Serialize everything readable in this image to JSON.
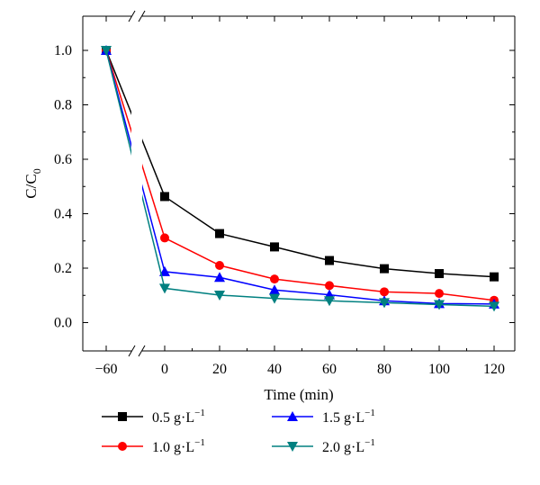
{
  "chart_data": {
    "type": "line",
    "xlabel": "Time (min)",
    "ylabel": {
      "main": "C/C",
      "sub": "0"
    },
    "x": [
      -60,
      0,
      20,
      40,
      60,
      80,
      100,
      120
    ],
    "x_tick_labels": [
      "−60",
      "0",
      "20",
      "40",
      "60",
      "80",
      "100",
      "120"
    ],
    "y_ticks": [
      0.0,
      0.2,
      0.4,
      0.6,
      0.8,
      1.0
    ],
    "y_tick_labels": [
      "0.0",
      "0.2",
      "0.4",
      "0.6",
      "0.8",
      "1.0"
    ],
    "ylim": [
      -0.08,
      1.1
    ],
    "axis_break": "between -60 and 0",
    "grid": false,
    "legend_position": "bottom",
    "series": [
      {
        "name": "0.5 g·L",
        "unit_exp": "−1",
        "color": "#000000",
        "marker": "square",
        "values": [
          1.0,
          0.463,
          0.327,
          0.278,
          0.228,
          0.198,
          0.18,
          0.168
        ]
      },
      {
        "name": "1.0 g·L",
        "unit_exp": "−1",
        "color": "#ff0000",
        "marker": "circle",
        "values": [
          1.0,
          0.311,
          0.21,
          0.16,
          0.136,
          0.113,
          0.107,
          0.082
        ]
      },
      {
        "name": "1.5 g·L",
        "unit_exp": "−1",
        "color": "#0000ff",
        "marker": "triangle-up",
        "values": [
          1.0,
          0.187,
          0.166,
          0.12,
          0.102,
          0.08,
          0.07,
          0.068
        ]
      },
      {
        "name": "2.0 g·L",
        "unit_exp": "−1",
        "color": "#008080",
        "marker": "triangle-down",
        "values": [
          1.0,
          0.126,
          0.101,
          0.089,
          0.08,
          0.073,
          0.066,
          0.06
        ]
      }
    ]
  }
}
